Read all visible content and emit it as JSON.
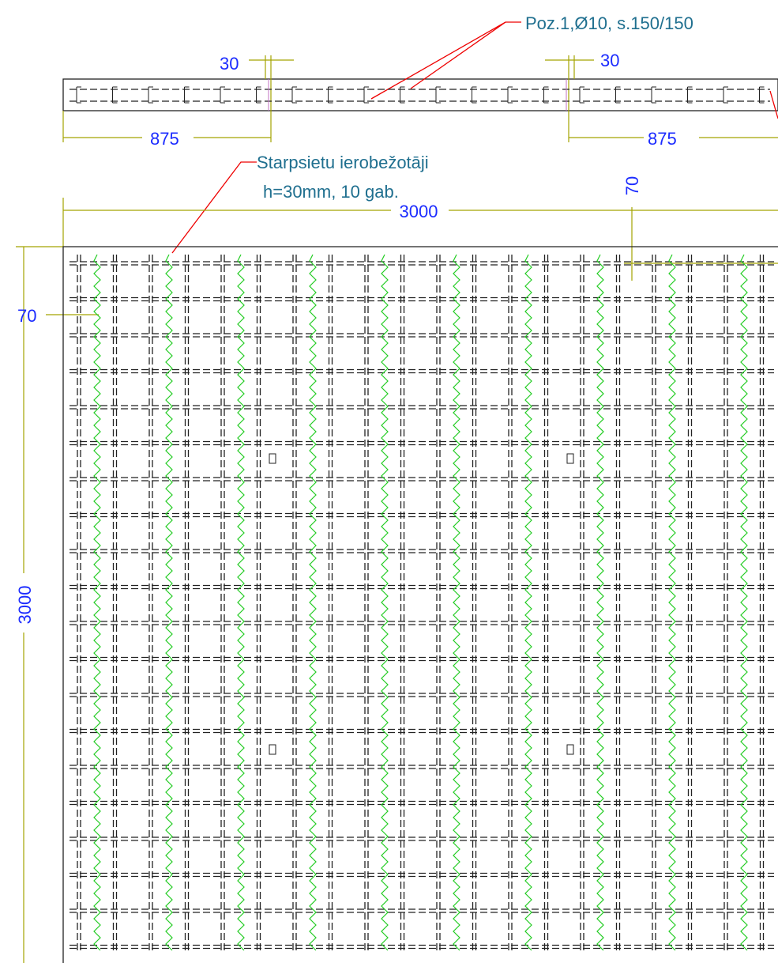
{
  "callouts": [
    {
      "label": "Poz.1,Ø10, s.150/150"
    },
    {
      "label": "Starpsietu ierobežotāji",
      "sublabel": "h=30mm, 10 gab."
    }
  ],
  "dimensions": {
    "gap_left": "30",
    "gap_right": "30",
    "edge_left": "875",
    "edge_right": "875",
    "width": "3000",
    "height": "3000",
    "cover_left": "70",
    "cover_top": "70"
  }
}
